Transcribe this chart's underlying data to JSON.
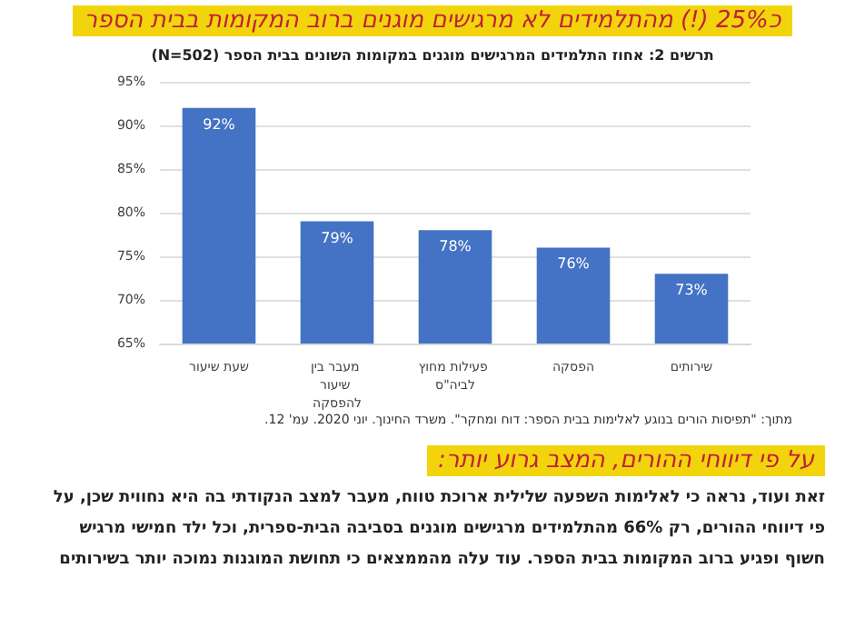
{
  "chart_data": {
    "type": "bar",
    "title": "כ25% (!) מהתלמידים לא מרגישים מוגנים ברוב המקומות בבית הספר",
    "subtitle": "תרשים 2: אחוז התלמידים המרגישים מוגנים במקומות השונים בבית הספר (N=502)",
    "categories": [
      "שעת שיעור",
      "מעבר בין שיעור להפסקה",
      "פעילות מחוץ לביה\"ס",
      "הפסקה",
      "שירותים"
    ],
    "values": [
      92,
      79,
      78,
      76,
      73
    ],
    "value_labels": [
      "92%",
      "79%",
      "78%",
      "76%",
      "73%"
    ],
    "color": "#4472c4",
    "ylim": [
      65,
      95
    ],
    "yticks": [
      {
        "value": 65,
        "label": "65%"
      },
      {
        "value": 70,
        "label": "70%"
      },
      {
        "value": 75,
        "label": "75%"
      },
      {
        "value": 80,
        "label": "80%"
      },
      {
        "value": 85,
        "label": "85%"
      },
      {
        "value": 90,
        "label": "90%"
      },
      {
        "value": 95,
        "label": "95%"
      }
    ],
    "grid": "y",
    "annotations": [
      "מתוך: \"תפיסות הורים בנוגע לאלימות בבית הספר: דוח ומחקר\". משרד החינוך. יוני 2020. עמ' 12.",
      "על פי דיווחי ההורים, המצב גרוע יותר:",
      "זאת ועוד, נראה כי לאלימות השפעה שלילית ארוכת טווח, מעבר למצב הנקודתי בה היא נחווית שכן, על פי דיווחי ההורים, רק 66% מהתלמידים מרגישים מוגנים בסביבה הבית-ספרית, וכל ילד חמישי מרגיש חשוף ופגיע ברוב המקומות בבית הספר. עוד עלה מהממצאים כי תחושת המוגנות נמוכה יותר בשירותים"
    ]
  }
}
